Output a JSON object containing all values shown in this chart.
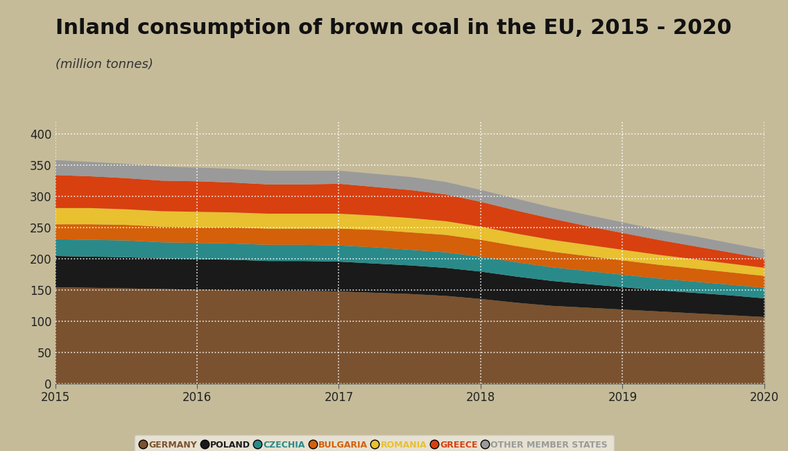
{
  "title": "Inland consumption of brown coal in the EU, 2015 - 2020",
  "subtitle": "(million tonnes)",
  "background_color": "#c5bb99",
  "plot_bg_color": "#c5bb99",
  "years": [
    2015,
    2015.25,
    2015.5,
    2015.75,
    2016,
    2016.25,
    2016.5,
    2016.75,
    2017,
    2017.25,
    2017.5,
    2017.75,
    2018,
    2018.25,
    2018.5,
    2018.75,
    2019,
    2019.25,
    2019.5,
    2019.75,
    2020
  ],
  "series": {
    "GERMANY": {
      "color": "#7a5230",
      "values": [
        155,
        154,
        153,
        152,
        151,
        150,
        149,
        149,
        148,
        146,
        144,
        141,
        136,
        130,
        125,
        122,
        119,
        116,
        113,
        110,
        107
      ]
    },
    "POLAND": {
      "color": "#1a1a1a",
      "values": [
        50,
        50,
        50,
        49,
        49,
        49,
        48,
        48,
        48,
        47,
        46,
        45,
        44,
        42,
        40,
        38,
        36,
        34,
        33,
        32,
        30
      ]
    },
    "CZECHIA": {
      "color": "#2a8a8a",
      "values": [
        27,
        27,
        27,
        26,
        26,
        26,
        26,
        26,
        26,
        26,
        25,
        25,
        24,
        23,
        22,
        21,
        20,
        19,
        18,
        17,
        17
      ]
    },
    "BULGARIA": {
      "color": "#d4600a",
      "values": [
        24,
        25,
        25,
        25,
        25,
        26,
        26,
        26,
        27,
        28,
        28,
        28,
        27,
        26,
        25,
        24,
        23,
        22,
        21,
        20,
        19
      ]
    },
    "ROMANIA": {
      "color": "#e8c030",
      "values": [
        26,
        26,
        25,
        25,
        25,
        24,
        24,
        24,
        24,
        23,
        23,
        22,
        21,
        20,
        19,
        18,
        17,
        16,
        15,
        14,
        13
      ]
    },
    "GREECE": {
      "color": "#d84010",
      "values": [
        53,
        51,
        50,
        49,
        49,
        48,
        47,
        47,
        48,
        46,
        45,
        43,
        40,
        37,
        34,
        30,
        27,
        24,
        21,
        18,
        15
      ]
    },
    "OTHER MEMBER STATES": {
      "color": "#9a9a9a",
      "values": [
        24,
        23,
        23,
        23,
        22,
        22,
        22,
        22,
        21,
        21,
        21,
        20,
        19,
        19,
        18,
        18,
        17,
        16,
        16,
        15,
        14
      ]
    }
  },
  "ylim": [
    0,
    420
  ],
  "yticks": [
    0,
    50,
    100,
    150,
    200,
    250,
    300,
    350,
    400
  ],
  "grid_color": "#ffffff",
  "legend_bg": "#f0ebe0",
  "title_fontsize": 22,
  "subtitle_fontsize": 13,
  "tick_fontsize": 12,
  "legend_fontsize": 9
}
